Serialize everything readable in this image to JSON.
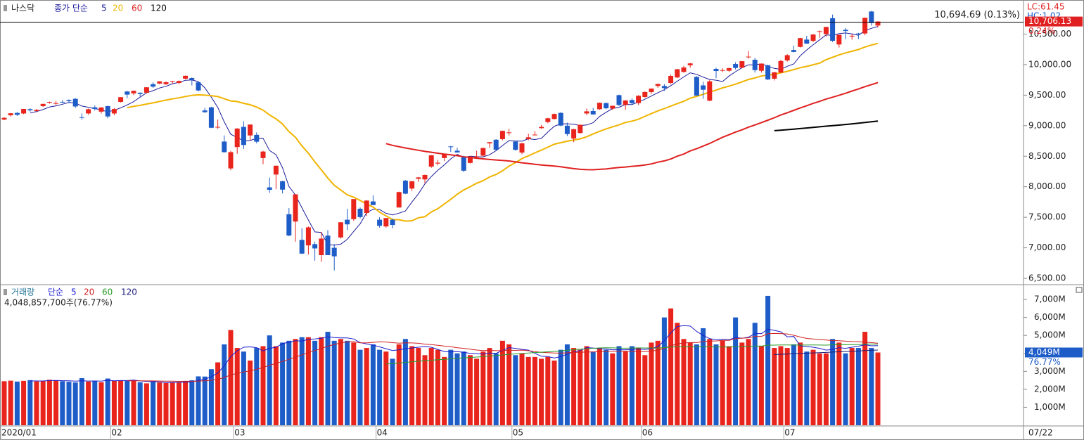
{
  "chart_data": [
    {
      "type": "candlestick",
      "title": "나스닥",
      "ma_label": "종가 단순",
      "ma": [
        {
          "period": 5,
          "color": "#1c1c9c"
        },
        {
          "period": 20,
          "color": "#f0b400"
        },
        {
          "period": 60,
          "color": "#e02020"
        },
        {
          "period": 120,
          "color": "#000000"
        }
      ],
      "up_color": "#e8241c",
      "down_color": "#1e5cc8",
      "categories": [
        "2020/01",
        null,
        null,
        null,
        null,
        null,
        null,
        null,
        null,
        null,
        null,
        null,
        null,
        null,
        null,
        null,
        null,
        "02",
        null,
        null,
        null,
        null,
        null,
        null,
        null,
        null,
        null,
        null,
        null,
        null,
        null,
        null,
        null,
        null,
        null,
        null,
        "03",
        null,
        null,
        null,
        null,
        null,
        null,
        null,
        null,
        null,
        null,
        null,
        null,
        null,
        null,
        null,
        null,
        null,
        null,
        null,
        null,
        null,
        "04",
        null,
        null,
        null,
        null,
        null,
        null,
        null,
        null,
        null,
        null,
        null,
        null,
        null,
        null,
        null,
        null,
        null,
        null,
        null,
        null,
        "05",
        null,
        null,
        null,
        null,
        null,
        null,
        null,
        null,
        null,
        null,
        null,
        null,
        null,
        null,
        null,
        null,
        null,
        null,
        null,
        "06",
        null,
        null,
        null,
        null,
        null,
        null,
        null,
        null,
        null,
        null,
        null,
        null,
        null,
        null,
        null,
        null,
        null,
        null,
        null,
        null,
        null,
        "07",
        null,
        null,
        null,
        null,
        null,
        null,
        null,
        null,
        null,
        null,
        null,
        null,
        null,
        null
      ],
      "last_date": "07/22",
      "ohlc": [
        [
          9100,
          9140,
          9090,
          9129
        ],
        [
          9170,
          9210,
          9150,
          9203
        ],
        [
          9210,
          9220,
          9160,
          9178
        ],
        [
          9200,
          9275,
          9190,
          9274
        ],
        [
          9270,
          9285,
          9230,
          9251
        ],
        [
          9240,
          9275,
          9220,
          9259
        ],
        [
          9320,
          9360,
          9310,
          9357
        ],
        [
          9380,
          9395,
          9360,
          9389
        ],
        [
          9370,
          9405,
          9340,
          9370
        ],
        [
          9390,
          9420,
          9370,
          9383
        ],
        [
          9420,
          9430,
          9370,
          9402
        ],
        [
          9440,
          9450,
          9290,
          9315
        ],
        [
          9140,
          9200,
          9100,
          9139
        ],
        [
          9200,
          9280,
          9180,
          9269
        ],
        [
          9300,
          9330,
          9250,
          9275
        ],
        [
          9230,
          9305,
          9200,
          9298
        ],
        [
          9320,
          9330,
          9120,
          9151
        ],
        [
          9200,
          9290,
          9170,
          9273
        ],
        [
          9390,
          9470,
          9380,
          9467
        ],
        [
          9560,
          9570,
          9450,
          9509
        ],
        [
          9530,
          9575,
          9500,
          9572
        ],
        [
          9540,
          9545,
          9480,
          9520
        ],
        [
          9540,
          9630,
          9530,
          9629
        ],
        [
          9680,
          9710,
          9620,
          9639
        ],
        [
          9690,
          9730,
          9680,
          9726
        ],
        [
          9680,
          9725,
          9670,
          9712
        ],
        [
          9720,
          9735,
          9690,
          9731
        ],
        [
          9700,
          9740,
          9680,
          9732
        ],
        [
          9770,
          9820,
          9760,
          9817
        ],
        [
          9780,
          9790,
          9660,
          9751
        ],
        [
          9710,
          9720,
          9560,
          9577
        ],
        [
          9250,
          9290,
          9210,
          9221
        ],
        [
          9300,
          9310,
          8960,
          8966
        ],
        [
          8980,
          9100,
          8950,
          8981
        ],
        [
          8740,
          8840,
          8560,
          8566
        ],
        [
          8300,
          8590,
          8270,
          8567
        ],
        [
          8650,
          8960,
          8540,
          8953
        ],
        [
          8980,
          9070,
          8620,
          8684
        ],
        [
          8840,
          9020,
          8760,
          9019
        ],
        [
          8850,
          8890,
          8710,
          8738
        ],
        [
          8470,
          8590,
          8370,
          8576
        ],
        [
          7990,
          8150,
          7900,
          7950
        ],
        [
          8200,
          8350,
          7960,
          8344
        ],
        [
          8090,
          8100,
          7890,
          7953
        ],
        [
          7550,
          7650,
          7190,
          7201
        ],
        [
          7430,
          7880,
          7100,
          7875
        ],
        [
          7130,
          7320,
          6900,
          6905
        ],
        [
          7040,
          7350,
          6890,
          7335
        ],
        [
          7060,
          7100,
          6790,
          6990
        ],
        [
          6880,
          7260,
          6770,
          7151
        ],
        [
          7200,
          7290,
          6880,
          6880
        ],
        [
          7000,
          7060,
          6630,
          6861
        ],
        [
          7170,
          7420,
          7150,
          7418
        ],
        [
          7460,
          7640,
          7290,
          7384
        ],
        [
          7470,
          7800,
          7440,
          7798
        ],
        [
          7640,
          7660,
          7480,
          7503
        ],
        [
          7570,
          7780,
          7520,
          7774
        ],
        [
          7760,
          7860,
          7700,
          7700
        ],
        [
          7460,
          7500,
          7330,
          7361
        ],
        [
          7350,
          7490,
          7330,
          7487
        ],
        [
          7460,
          7480,
          7320,
          7374
        ],
        [
          7660,
          7920,
          7660,
          7913
        ],
        [
          8100,
          8110,
          7880,
          7887
        ],
        [
          7970,
          8090,
          7930,
          8091
        ],
        [
          8130,
          8160,
          8080,
          8153
        ],
        [
          8120,
          8200,
          8060,
          8193
        ],
        [
          8330,
          8520,
          8310,
          8515
        ],
        [
          8380,
          8440,
          8350,
          8394
        ],
        [
          8470,
          8540,
          8420,
          8533
        ],
        [
          8660,
          8670,
          8570,
          8650
        ],
        [
          8590,
          8640,
          8560,
          8561
        ],
        [
          8480,
          8500,
          8240,
          8263
        ],
        [
          8390,
          8500,
          8380,
          8495
        ],
        [
          8480,
          8590,
          8480,
          8495
        ],
        [
          8510,
          8640,
          8490,
          8634
        ],
        [
          8710,
          8730,
          8640,
          8730
        ],
        [
          8770,
          8780,
          8600,
          8607
        ],
        [
          8780,
          8920,
          8760,
          8915
        ],
        [
          8880,
          8950,
          8840,
          8890
        ],
        [
          8740,
          8750,
          8590,
          8605
        ],
        [
          8560,
          8720,
          8530,
          8711
        ],
        [
          8780,
          8870,
          8760,
          8810
        ],
        [
          8850,
          8910,
          8840,
          8854
        ],
        [
          8960,
          9010,
          8950,
          8980
        ],
        [
          9060,
          9130,
          9040,
          9121
        ],
        [
          9110,
          9200,
          9100,
          9192
        ],
        [
          9210,
          9220,
          8990,
          9002
        ],
        [
          9000,
          9050,
          8830,
          8863
        ],
        [
          8790,
          8950,
          8730,
          8943
        ],
        [
          8880,
          9020,
          8870,
          9015
        ],
        [
          9200,
          9280,
          9170,
          9235
        ],
        [
          9240,
          9290,
          9180,
          9185
        ],
        [
          9270,
          9380,
          9260,
          9375
        ],
        [
          9370,
          9380,
          9270,
          9285
        ],
        [
          9280,
          9330,
          9260,
          9325
        ],
        [
          9500,
          9510,
          9320,
          9340
        ],
        [
          9340,
          9420,
          9260,
          9413
        ],
        [
          9420,
          9450,
          9340,
          9369
        ],
        [
          9370,
          9500,
          9340,
          9490
        ],
        [
          9470,
          9560,
          9460,
          9552
        ],
        [
          9550,
          9610,
          9520,
          9608
        ],
        [
          9650,
          9690,
          9620,
          9683
        ],
        [
          9650,
          9680,
          9570,
          9616
        ],
        [
          9700,
          9840,
          9680,
          9815
        ],
        [
          9790,
          9930,
          9780,
          9925
        ],
        [
          9880,
          9980,
          9870,
          9953
        ],
        [
          9990,
          10030,
          9950,
          10020
        ],
        [
          9800,
          9810,
          9490,
          9493
        ],
        [
          9660,
          9720,
          9440,
          9589
        ],
        [
          9410,
          9750,
          9400,
          9726
        ],
        [
          9930,
          9950,
          9780,
          9896
        ],
        [
          9910,
          9940,
          9880,
          9911
        ],
        [
          9900,
          9950,
          9880,
          9943
        ],
        [
          10010,
          10040,
          9920,
          9946
        ],
        [
          9950,
          10060,
          9940,
          10056
        ],
        [
          10120,
          10220,
          10100,
          10131
        ],
        [
          10080,
          10110,
          9870,
          9910
        ],
        [
          9900,
          10020,
          9870,
          10017
        ],
        [
          9990,
          10000,
          9750,
          9757
        ],
        [
          9770,
          9880,
          9740,
          9875
        ],
        [
          9870,
          10080,
          9860,
          10059
        ],
        [
          10070,
          10170,
          10050,
          10155
        ],
        [
          10240,
          10310,
          10200,
          10208
        ],
        [
          10290,
          10440,
          10280,
          10434
        ],
        [
          10410,
          10470,
          10340,
          10344
        ],
        [
          10390,
          10500,
          10370,
          10493
        ],
        [
          10540,
          10560,
          10440,
          10548
        ],
        [
          10500,
          10620,
          10460,
          10617
        ],
        [
          10760,
          10820,
          10370,
          10391
        ],
        [
          10330,
          10490,
          10280,
          10489
        ],
        [
          10570,
          10600,
          10420,
          10550
        ],
        [
          10460,
          10500,
          10410,
          10473
        ],
        [
          10510,
          10520,
          10420,
          10503
        ],
        [
          10510,
          10770,
          10480,
          10767
        ],
        [
          10870,
          10880,
          10640,
          10681
        ],
        [
          10640,
          10710,
          10610,
          10706.13
        ]
      ],
      "ylim": [
        6408,
        11024
      ],
      "yticks": [
        {
          "value": 6500,
          "label": "6,500.00"
        },
        {
          "value": 7000,
          "label": "7,000.00"
        },
        {
          "value": 7500,
          "label": "7,500.00"
        },
        {
          "value": 8000,
          "label": "8,000.00"
        },
        {
          "value": 8500,
          "label": "8,500.00"
        },
        {
          "value": 9000,
          "label": "9,000.00"
        },
        {
          "value": 9500,
          "label": "9,500.00"
        },
        {
          "value": 10000,
          "label": "10,000.00"
        },
        {
          "value": 10500,
          "label": "10,500.00"
        }
      ],
      "ref_line": {
        "value": 10694.69,
        "label": "10,694.69 (0.13%)"
      },
      "last_label": {
        "value": 10706.13,
        "label": "10,706.13"
      },
      "change_label": "0.24%",
      "lc_label": "LC:61.45",
      "hc_label": "HC:1.02"
    },
    {
      "type": "bar",
      "title": "거래량",
      "ma_label": "단순",
      "ma": [
        {
          "period": 5,
          "color": "#1c1cd0"
        },
        {
          "period": 20,
          "color": "#d02020"
        },
        {
          "period": 60,
          "color": "#2a9a2a"
        },
        {
          "period": 120,
          "color": "#1c1c7c"
        }
      ],
      "values": [
        2450,
        2480,
        2430,
        2470,
        2510,
        2440,
        2480,
        2530,
        2500,
        2450,
        2420,
        2380,
        2620,
        2430,
        2470,
        2390,
        2600,
        2480,
        2500,
        2470,
        2510,
        2390,
        2330,
        2450,
        2380,
        2350,
        2400,
        2380,
        2470,
        2500,
        2720,
        2710,
        3120,
        3500,
        4500,
        5300,
        4300,
        4100,
        3600,
        4300,
        4400,
        5000,
        4400,
        4600,
        4700,
        4800,
        4900,
        4900,
        4700,
        4900,
        5200,
        4700,
        4800,
        4700,
        4600,
        4200,
        4300,
        4500,
        4200,
        4100,
        3700,
        4500,
        4800,
        4400,
        4300,
        3900,
        4300,
        4200,
        3800,
        4200,
        4000,
        4100,
        3900,
        3700,
        4100,
        4300,
        4000,
        4700,
        4500,
        3900,
        4000,
        3800,
        3800,
        3700,
        3800,
        3600,
        4200,
        4500,
        4300,
        4200,
        4400,
        4100,
        4300,
        4200,
        4000,
        4400,
        4100,
        4400,
        4300,
        3900,
        4600,
        4700,
        6000,
        6500,
        5700,
        4800,
        4600,
        4500,
        5400,
        4800,
        4500,
        4700,
        4400,
        6000,
        4600,
        4800,
        5700,
        4400,
        7200,
        4300,
        4400,
        4300,
        4500,
        4600,
        4100,
        4200,
        4000,
        4000,
        4800,
        4600,
        4000,
        4300,
        4300,
        5200,
        4300,
        4048.8577
      ],
      "value_label": "4,048,857,700주(76.77%)",
      "last_label": {
        "value": 4048.8577,
        "label": "4,049M"
      },
      "ratio_label": "76.77%",
      "ylim": [
        0,
        7745
      ],
      "yticks": [
        {
          "value": 1000,
          "label": "1,000M"
        },
        {
          "value": 2000,
          "label": "2,000M"
        },
        {
          "value": 3000,
          "label": "3,000M"
        },
        {
          "value": 4000,
          "label": "4,000M"
        },
        {
          "value": 5000,
          "label": "5,000M"
        },
        {
          "value": 6000,
          "label": "6,000M"
        },
        {
          "value": 7000,
          "label": "7,000M"
        }
      ]
    }
  ]
}
